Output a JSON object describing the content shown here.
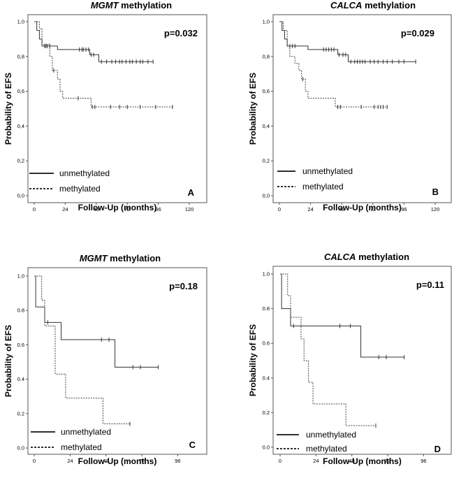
{
  "chart_data": [
    {
      "type": "line",
      "panel": "A",
      "title_italic": "MGMT",
      "title_rest": " methylation",
      "xlabel": "Follow-Up (months)",
      "ylabel": "Probability of EFS",
      "p_value": "p=0.032",
      "xlim": [
        0,
        120
      ],
      "ylim": [
        0,
        1
      ],
      "xticks": [
        "0",
        "24",
        "48",
        "72",
        "96",
        "120"
      ],
      "yticks": [
        "0,0",
        "0,2",
        "0,4",
        "0,6",
        "0,8",
        "1,0"
      ],
      "series": [
        {
          "name": "unmethylated",
          "style": "solid",
          "steps": [
            [
              0,
              1.0
            ],
            [
              2,
              0.95
            ],
            [
              4,
              0.9
            ],
            [
              6,
              0.86
            ],
            [
              18,
              0.84
            ],
            [
              43,
              0.81
            ],
            [
              50,
              0.77
            ],
            [
              92,
              0.77
            ]
          ],
          "censors": [
            [
              8,
              0.86
            ],
            [
              9,
              0.86
            ],
            [
              10,
              0.86
            ],
            [
              12,
              0.86
            ],
            [
              35,
              0.84
            ],
            [
              37,
              0.84
            ],
            [
              38,
              0.84
            ],
            [
              40,
              0.84
            ],
            [
              42,
              0.84
            ],
            [
              44,
              0.81
            ],
            [
              46,
              0.81
            ],
            [
              52,
              0.77
            ],
            [
              56,
              0.77
            ],
            [
              60,
              0.77
            ],
            [
              63,
              0.77
            ],
            [
              66,
              0.77
            ],
            [
              68,
              0.77
            ],
            [
              71,
              0.77
            ],
            [
              74,
              0.77
            ],
            [
              76,
              0.77
            ],
            [
              79,
              0.77
            ],
            [
              82,
              0.77
            ],
            [
              84,
              0.77
            ],
            [
              88,
              0.77
            ],
            [
              92,
              0.77
            ]
          ]
        },
        {
          "name": "methylated",
          "style": "dashed",
          "steps": [
            [
              0,
              1.0
            ],
            [
              4,
              0.96
            ],
            [
              6,
              0.87
            ],
            [
              12,
              0.8
            ],
            [
              14,
              0.72
            ],
            [
              18,
              0.67
            ],
            [
              20,
              0.6
            ],
            [
              22,
              0.56
            ],
            [
              44,
              0.51
            ],
            [
              107,
              0.51
            ]
          ],
          "censors": [
            [
              15,
              0.72
            ],
            [
              34,
              0.56
            ],
            [
              45,
              0.51
            ],
            [
              47,
              0.51
            ],
            [
              59,
              0.51
            ],
            [
              66,
              0.51
            ],
            [
              72,
              0.51
            ],
            [
              82,
              0.51
            ],
            [
              94,
              0.51
            ],
            [
              107,
              0.51
            ]
          ]
        }
      ]
    },
    {
      "type": "line",
      "panel": "B",
      "title_italic": "CALCA",
      "title_rest": " methylation",
      "xlabel": "Follow-Up (months)",
      "ylabel": "Probability of EFS",
      "p_value": "p=0.029",
      "xlim": [
        0,
        120
      ],
      "ylim": [
        0,
        1
      ],
      "xticks": [
        "0",
        "24",
        "48",
        "72",
        "96",
        "120"
      ],
      "yticks": [
        "0,0",
        "0,2",
        "0,4",
        "0,6",
        "0,8",
        "1,0"
      ],
      "series": [
        {
          "name": "unmethylated",
          "style": "solid",
          "steps": [
            [
              0,
              1.0
            ],
            [
              2,
              0.95
            ],
            [
              4,
              0.9
            ],
            [
              6,
              0.86
            ],
            [
              22,
              0.84
            ],
            [
              45,
              0.81
            ],
            [
              53,
              0.77
            ],
            [
              105,
              0.77
            ]
          ],
          "censors": [
            [
              8,
              0.86
            ],
            [
              10,
              0.86
            ],
            [
              12,
              0.86
            ],
            [
              34,
              0.84
            ],
            [
              36,
              0.84
            ],
            [
              38,
              0.84
            ],
            [
              40,
              0.84
            ],
            [
              42,
              0.84
            ],
            [
              46,
              0.81
            ],
            [
              49,
              0.81
            ],
            [
              51,
              0.81
            ],
            [
              55,
              0.77
            ],
            [
              58,
              0.77
            ],
            [
              60,
              0.77
            ],
            [
              62,
              0.77
            ],
            [
              64,
              0.77
            ],
            [
              66,
              0.77
            ],
            [
              70,
              0.77
            ],
            [
              73,
              0.77
            ],
            [
              76,
              0.77
            ],
            [
              80,
              0.77
            ],
            [
              83,
              0.77
            ],
            [
              87,
              0.77
            ],
            [
              92,
              0.77
            ],
            [
              96,
              0.77
            ],
            [
              105,
              0.77
            ]
          ]
        },
        {
          "name": "methylated",
          "style": "dashed",
          "steps": [
            [
              0,
              1.0
            ],
            [
              3,
              0.95
            ],
            [
              6,
              0.86
            ],
            [
              8,
              0.8
            ],
            [
              12,
              0.76
            ],
            [
              15,
              0.72
            ],
            [
              17,
              0.67
            ],
            [
              20,
              0.6
            ],
            [
              22,
              0.56
            ],
            [
              43,
              0.51
            ],
            [
              83,
              0.51
            ]
          ],
          "censors": [
            [
              18,
              0.67
            ],
            [
              45,
              0.51
            ],
            [
              47,
              0.51
            ],
            [
              63,
              0.51
            ],
            [
              73,
              0.51
            ],
            [
              76,
              0.51
            ],
            [
              78,
              0.51
            ],
            [
              80,
              0.51
            ],
            [
              83,
              0.51
            ]
          ]
        }
      ]
    },
    {
      "type": "line",
      "panel": "C",
      "title_italic": "MGMT",
      "title_rest": " methylation",
      "xlabel": "Follow-Up (months)",
      "ylabel": "Probability of EFS",
      "p_value": "p=0.18",
      "xlim": [
        0,
        100
      ],
      "ylim": [
        0,
        1
      ],
      "xticks": [
        "0",
        "24",
        "48",
        "72",
        "96"
      ],
      "yticks": [
        "0.0",
        "0.2",
        "0.4",
        "0.6",
        "0.8",
        "1.0"
      ],
      "series": [
        {
          "name": "unmethylated",
          "style": "solid",
          "steps": [
            [
              0,
              1.0
            ],
            [
              1,
              0.82
            ],
            [
              7,
              0.73
            ],
            [
              18,
              0.63
            ],
            [
              54,
              0.47
            ],
            [
              83,
              0.47
            ]
          ],
          "censors": [
            [
              9,
              0.73
            ],
            [
              45,
              0.63
            ],
            [
              50,
              0.63
            ],
            [
              66,
              0.47
            ],
            [
              71,
              0.47
            ],
            [
              83,
              0.47
            ]
          ]
        },
        {
          "name": "methylated",
          "style": "dashed",
          "steps": [
            [
              0,
              1.0
            ],
            [
              5,
              0.86
            ],
            [
              7,
              0.71
            ],
            [
              14,
              0.43
            ],
            [
              21,
              0.29
            ],
            [
              46,
              0.14
            ],
            [
              64,
              0.14
            ]
          ],
          "censors": [
            [
              64,
              0.14
            ]
          ]
        }
      ]
    },
    {
      "type": "line",
      "panel": "D",
      "title_italic": "CALCA",
      "title_rest": " methylation",
      "xlabel": "Follow-Up (months)",
      "ylabel": "Probability of EFS",
      "p_value": "p=0.11",
      "xlim": [
        0,
        100
      ],
      "ylim": [
        0,
        1
      ],
      "xticks": [
        "0",
        "24",
        "48",
        "72",
        "96"
      ],
      "yticks": [
        "0.0",
        "0.2",
        "0.4",
        "0.6",
        "0.8",
        "1.0"
      ],
      "series": [
        {
          "name": "unmethylated",
          "style": "solid",
          "steps": [
            [
              0,
              1.0
            ],
            [
              1,
              0.8
            ],
            [
              7,
              0.7
            ],
            [
              54,
              0.52
            ],
            [
              83,
              0.52
            ]
          ],
          "censors": [
            [
              9,
              0.7
            ],
            [
              40,
              0.7
            ],
            [
              47,
              0.7
            ],
            [
              66,
              0.52
            ],
            [
              71,
              0.52
            ],
            [
              83,
              0.52
            ]
          ]
        },
        {
          "name": "methylated",
          "style": "dashed",
          "steps": [
            [
              0,
              1.0
            ],
            [
              5,
              0.875
            ],
            [
              7,
              0.75
            ],
            [
              14,
              0.625
            ],
            [
              16,
              0.5
            ],
            [
              19,
              0.375
            ],
            [
              22,
              0.25
            ],
            [
              44,
              0.125
            ],
            [
              64,
              0.125
            ]
          ],
          "censors": [
            [
              64,
              0.125
            ]
          ]
        }
      ]
    }
  ]
}
